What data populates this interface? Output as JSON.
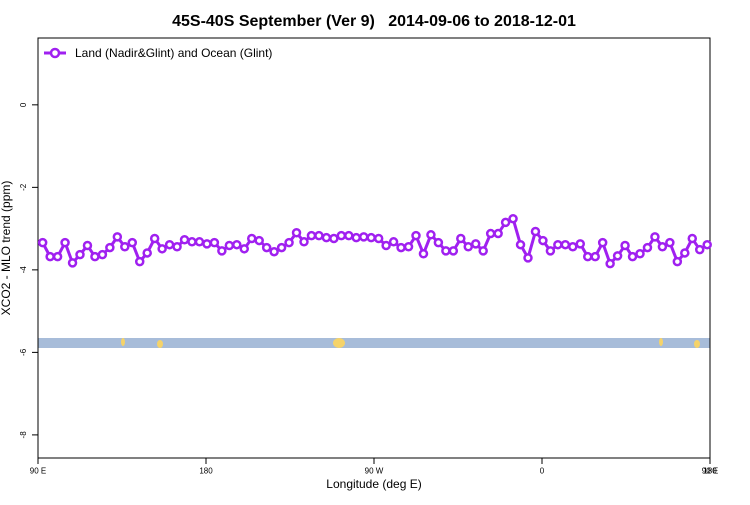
{
  "chart_data": {
    "type": "line",
    "title": "45S-40S September (Ver 9)   2014-09-06 to 2018-12-01",
    "xlabel": "Longitude (deg E)",
    "ylabel": "XCO2 - MLO trend (ppm)",
    "x": [
      92.5,
      96.5,
      100.5,
      104.5,
      108.5,
      112.5,
      116.5,
      120.5,
      124.5,
      128.5,
      132.5,
      136.5,
      140.5,
      144.5,
      148.5,
      152.5,
      156.5,
      160.5,
      164.5,
      168.5,
      172.5,
      176.5,
      180.5,
      184.5,
      188.5,
      192.5,
      196.5,
      200.5,
      204.5,
      208.5,
      212.5,
      216.5,
      220.5,
      224.5,
      228.5,
      232.5,
      236.5,
      240.5,
      244.5,
      248.5,
      252.5,
      256.5,
      260.5,
      264.5,
      268.5,
      272.5,
      276.5,
      280.5,
      284.5,
      288.5,
      292.5,
      296.5,
      300.5,
      304.5,
      308.5,
      312.5,
      316.5,
      320.5,
      324.5,
      328.5,
      332.5,
      336.5,
      340.5,
      344.5,
      348.5,
      352.5,
      356.5,
      360.5,
      364.5,
      368.5,
      372.5,
      376.5,
      380.5,
      384.5,
      388.5,
      392.5,
      396.5,
      400.5,
      404.5,
      408.5,
      412.5,
      416.5,
      420.5,
      424.5,
      428.5,
      432.5,
      436.5,
      440.5,
      444.5,
      448.5
    ],
    "series": [
      {
        "name": "Land (Nadir&Glint) and Ocean (Glint)",
        "color": "#a020f0",
        "values": [
          -3.34,
          -3.68,
          -3.68,
          -3.34,
          -3.83,
          -3.63,
          -3.41,
          -3.68,
          -3.63,
          -3.46,
          -3.2,
          -3.44,
          -3.34,
          -3.8,
          -3.59,
          -3.24,
          -3.49,
          -3.39,
          -3.44,
          -3.27,
          -3.32,
          -3.32,
          -3.37,
          -3.34,
          -3.54,
          -3.41,
          -3.39,
          -3.49,
          -3.24,
          -3.29,
          -3.46,
          -3.56,
          -3.46,
          -3.34,
          -3.1,
          -3.32,
          -3.17,
          -3.17,
          -3.22,
          -3.24,
          -3.17,
          -3.17,
          -3.22,
          -3.2,
          -3.22,
          -3.24,
          -3.41,
          -3.32,
          -3.46,
          -3.44,
          -3.17,
          -3.61,
          -3.15,
          -3.34,
          -3.54,
          -3.54,
          -3.24,
          -3.44,
          -3.37,
          -3.54,
          -3.12,
          -3.12,
          -2.85,
          -2.76,
          -3.39,
          -3.71,
          -3.07,
          -3.29,
          -3.54,
          -3.39,
          -3.39,
          -3.44,
          -3.37,
          -3.68,
          -3.68,
          -3.34,
          -3.85,
          -3.66,
          -3.41,
          -3.68,
          -3.61,
          -3.46,
          -3.2,
          -3.44,
          -3.34,
          -3.8,
          -3.59,
          -3.24,
          -3.51,
          -3.39
        ]
      }
    ],
    "xlim": [
      90,
      450
    ],
    "xticks": [
      {
        "value": 90,
        "label": "90 E"
      },
      180,
      {
        "value": 270,
        "label": "90 W"
      },
      {
        "value": 360,
        "label": "0"
      },
      {
        "value": 450,
        "label": "90 E"
      }
    ],
    "xticks_extra": [
      {
        "value": 540,
        "label": "180"
      }
    ],
    "ylim": [
      -8.56,
      1.62
    ],
    "yticks": [
      0,
      -2,
      -4,
      -6,
      -8
    ],
    "legend": "top-left"
  }
}
